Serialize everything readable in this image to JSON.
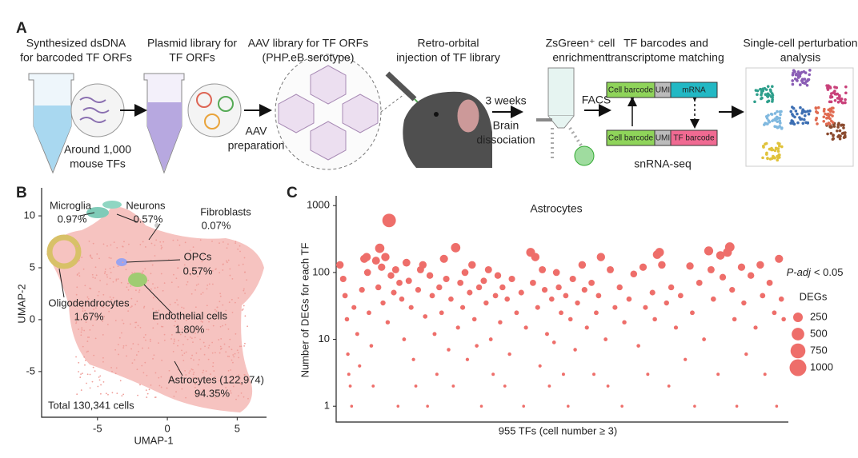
{
  "panel_a": {
    "label": "A",
    "steps": [
      [
        "Synthesized dsDNA",
        "for barcoded TF ORFs"
      ],
      [
        "Plasmid library for",
        "TF ORFs"
      ],
      [
        "AAV library for TF ORFs",
        "(PHP.eB serotype)"
      ],
      [
        "Retro-orbital",
        "injection of TF library"
      ],
      [
        "ZsGreen⁺ cell",
        "enrichment"
      ],
      [
        "TF barcodes and",
        "transcriptome matching"
      ],
      [
        "Single-cell perturbation",
        "analysis"
      ]
    ],
    "notes": {
      "tfs": [
        "Around 1,000",
        "mouse TFs"
      ],
      "aav": [
        "AAV",
        "preparation"
      ],
      "weeks": "3 weeks",
      "dissociation": [
        "Brain",
        "dissociation"
      ],
      "facs": "FACS",
      "snrna": "snRNA-seq"
    },
    "constructs": [
      [
        "Cell barcode",
        "UMI",
        "mRNA"
      ],
      [
        "Cell barcode",
        "UMI",
        "TF barcode"
      ]
    ]
  },
  "chart_data": [
    {
      "type": "scatter",
      "panel_label": "B",
      "xlabel": "UMAP-1",
      "ylabel": "UMAP-2",
      "xlim": [
        -9,
        7.1
      ],
      "ylim": [
        -9.4,
        12.7
      ],
      "xticks": [
        -5,
        0,
        5
      ],
      "yticks": [
        -5,
        0,
        5,
        10
      ],
      "annotations": [
        [
          "Microglia",
          "0.97%"
        ],
        [
          "Neurons",
          "0.57%"
        ],
        [
          "Fibroblasts",
          "0.07%"
        ],
        [
          "OPCs",
          "0.57%"
        ],
        [
          "Oligodendrocytes",
          "1.67%"
        ],
        [
          "Endothelial cells",
          "1.80%"
        ],
        [
          "Astrocytes (122,974)",
          "94.35%"
        ]
      ],
      "total": "Total 130,341 cells"
    },
    {
      "type": "scatter",
      "panel_label": "C",
      "title": "Astrocytes",
      "xlabel": "955 TFs (cell number ≥ 3)",
      "ylabel": "Number of DEGs for each TF",
      "log_y": true,
      "ylim": [
        0.58,
        1400
      ],
      "yticks": [
        1,
        10,
        100,
        1000
      ],
      "xlim": [
        -5,
        960
      ],
      "color": "#ee6e6a",
      "x": [
        3,
        10,
        14,
        18,
        20,
        22,
        25,
        28,
        33,
        40,
        45,
        50,
        55,
        60,
        62,
        65,
        70,
        74,
        80,
        85,
        88,
        92,
        95,
        100,
        105,
        108,
        112,
        118,
        122,
        127,
        130,
        135,
        140,
        145,
        150,
        155,
        160,
        165,
        170,
        175,
        180,
        185,
        190,
        195,
        200,
        205,
        210,
        215,
        220,
        225,
        230,
        235,
        240,
        245,
        250,
        255,
        260,
        265,
        270,
        275,
        280,
        285,
        290,
        295,
        300,
        305,
        310,
        315,
        320,
        325,
        330,
        335,
        340,
        345,
        350,
        355,
        360,
        365,
        370,
        380,
        390,
        395,
        400,
        410,
        415,
        420,
        425,
        430,
        435,
        440,
        445,
        450,
        455,
        460,
        465,
        470,
        475,
        480,
        485,
        490,
        495,
        500,
        505,
        510,
        520,
        525,
        530,
        540,
        545,
        550,
        555,
        560,
        570,
        575,
        580,
        590,
        600,
        605,
        610,
        620,
        630,
        640,
        650,
        655,
        660,
        670,
        675,
        680,
        685,
        690,
        700,
        705,
        710,
        720,
        730,
        740,
        750,
        755,
        760,
        770,
        780,
        790,
        795,
        800,
        810,
        815,
        820,
        830,
        835,
        840,
        845,
        850,
        860,
        865,
        870,
        880,
        890,
        900,
        905,
        910,
        920,
        930,
        935,
        940,
        945,
        950
      ],
      "values": [
        130,
        80,
        45,
        20,
        6,
        3,
        2,
        1,
        30,
        12,
        4,
        55,
        160,
        170,
        100,
        25,
        8,
        2,
        150,
        60,
        230,
        120,
        35,
        170,
        18,
        600,
        90,
        50,
        110,
        1,
        70,
        40,
        10,
        140,
        75,
        30,
        5,
        2,
        55,
        110,
        130,
        22,
        1,
        90,
        45,
        12,
        3,
        60,
        25,
        160,
        80,
        7,
        40,
        2,
        235,
        15,
        70,
        30,
        100,
        5,
        50,
        130,
        20,
        8,
        60,
        1,
        75,
        35,
        110,
        10,
        3,
        45,
        90,
        18,
        60,
        2,
        40,
        6,
        80,
        25,
        50,
        1,
        15,
        200,
        70,
        170,
        30,
        4,
        110,
        55,
        12,
        2,
        40,
        9,
        100,
        60,
        25,
        3,
        45,
        1,
        20,
        80,
        7,
        35,
        130,
        55,
        15,
        70,
        3,
        25,
        45,
        170,
        10,
        2,
        110,
        30,
        60,
        1,
        18,
        40,
        95,
        8,
        120,
        30,
        3,
        50,
        20,
        185,
        200,
        130,
        35,
        2,
        60,
        15,
        45,
        5,
        125,
        25,
        1,
        70,
        10,
        210,
        110,
        40,
        3,
        180,
        85,
        200,
        240,
        55,
        20,
        1,
        120,
        35,
        6,
        90,
        15,
        130,
        45,
        3,
        70,
        25,
        1,
        160,
        40,
        20
      ],
      "legend": {
        "title": "DEGs",
        "sizes": [
          250,
          500,
          750,
          1000
        ]
      },
      "note": [
        "P-adj",
        "< 0.05"
      ]
    }
  ]
}
